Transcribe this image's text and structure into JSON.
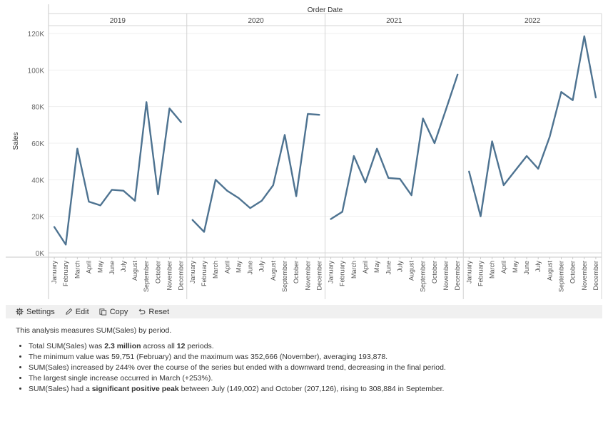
{
  "chart_data": {
    "type": "line",
    "title": "Order Date",
    "ylabel": "Sales",
    "ylim": [
      0,
      120000
    ],
    "yticks": [
      "0K",
      "20K",
      "40K",
      "60K",
      "80K",
      "100K",
      "120K"
    ],
    "yticks_values": [
      0,
      20000,
      40000,
      60000,
      80000,
      100000,
      120000
    ],
    "months": [
      "January",
      "February",
      "March",
      "April",
      "May",
      "June",
      "July",
      "August",
      "September",
      "October",
      "November",
      "December"
    ],
    "color": "#4e7391",
    "panels": [
      {
        "year": "2019",
        "values": [
          14200,
          4500,
          57000,
          28000,
          26000,
          34500,
          34000,
          28500,
          82500,
          32000,
          79000,
          71500
        ]
      },
      {
        "year": "2020",
        "values": [
          18000,
          11500,
          40000,
          34000,
          30000,
          24500,
          28500,
          37000,
          64500,
          31000,
          76000,
          75500
        ]
      },
      {
        "year": "2021",
        "values": [
          18500,
          22500,
          53000,
          38500,
          57000,
          41000,
          40500,
          31500,
          73500,
          60000,
          78500,
          97500
        ]
      },
      {
        "year": "2022",
        "values": [
          44500,
          20000,
          61000,
          37000,
          45000,
          53000,
          46000,
          63500,
          88000,
          83500,
          118500,
          85000
        ]
      }
    ]
  },
  "toolbar": {
    "settings": "Settings",
    "edit": "Edit",
    "copy": "Copy",
    "reset": "Reset"
  },
  "summary": {
    "intro": "This analysis measures SUM(Sales) by period.",
    "b1_pre": "Total SUM(Sales) was ",
    "b1_bold1": "2.3 million",
    "b1_mid": " across all ",
    "b1_bold2": "12",
    "b1_post": " periods.",
    "b2": "The minimum value was 59,751 (February) and the maximum was 352,666 (November), averaging 193,878.",
    "b3": "SUM(Sales) increased by 244% over the course of the series but ended with a downward trend, decreasing in the final period.",
    "b4": "The largest single increase occurred in March (+253%).",
    "b5_pre": "SUM(Sales) had a ",
    "b5_bold": "significant positive peak",
    "b5_post": " between July (149,002) and October (207,126), rising to 308,884 in September."
  }
}
